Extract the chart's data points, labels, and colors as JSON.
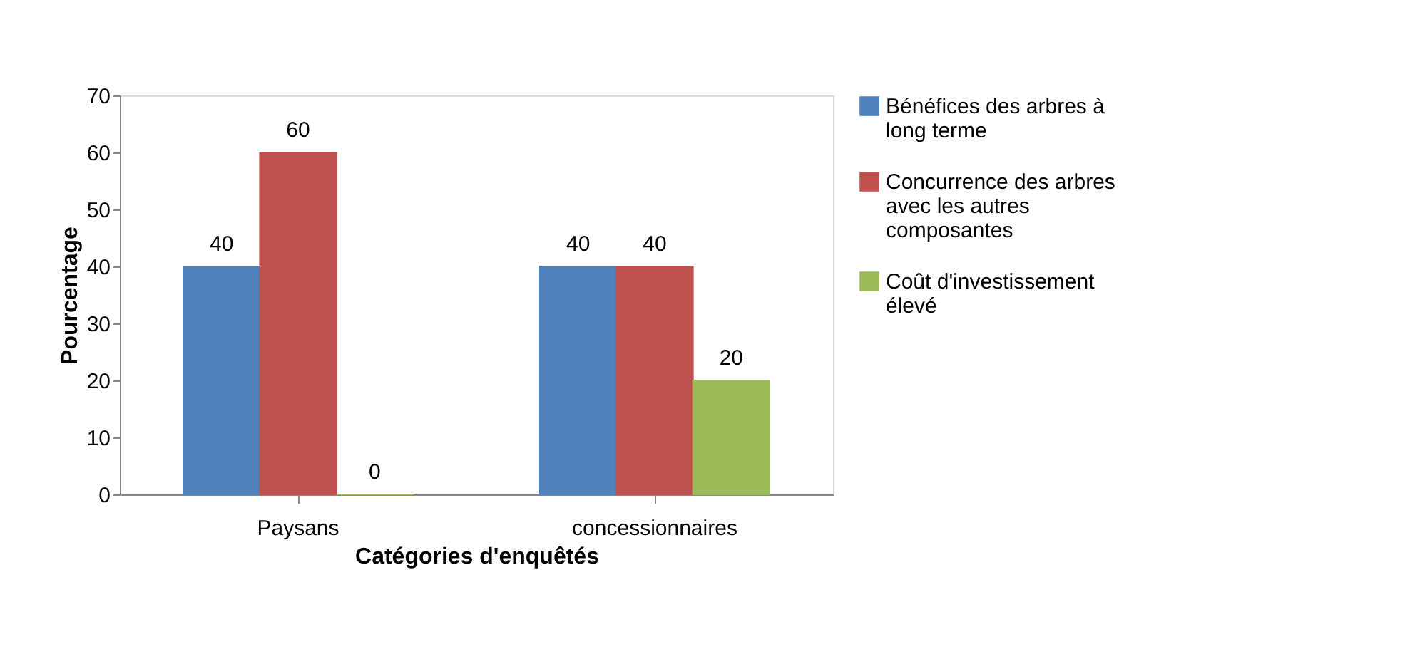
{
  "chart_data": {
    "type": "bar",
    "xlabel": "Catégories d'enquêtés",
    "ylabel": "Pourcentage",
    "categories": [
      "Paysans",
      "concessionnaires"
    ],
    "series": [
      {
        "name": "Bénéfices des arbres à long terme",
        "color": "#4f81bd",
        "values": [
          40,
          40
        ]
      },
      {
        "name": "Concurrence des arbres avec les autres composantes",
        "color": "#c0504d",
        "values": [
          60,
          40
        ]
      },
      {
        "name": "Coût d'investissement élevé",
        "color": "#9bbb59",
        "values": [
          0,
          20
        ]
      }
    ],
    "ylim": [
      0,
      70
    ],
    "yticks": [
      0,
      10,
      20,
      30,
      40,
      50,
      60,
      70
    ],
    "grid": false,
    "legend": "right",
    "data_labels": true
  }
}
